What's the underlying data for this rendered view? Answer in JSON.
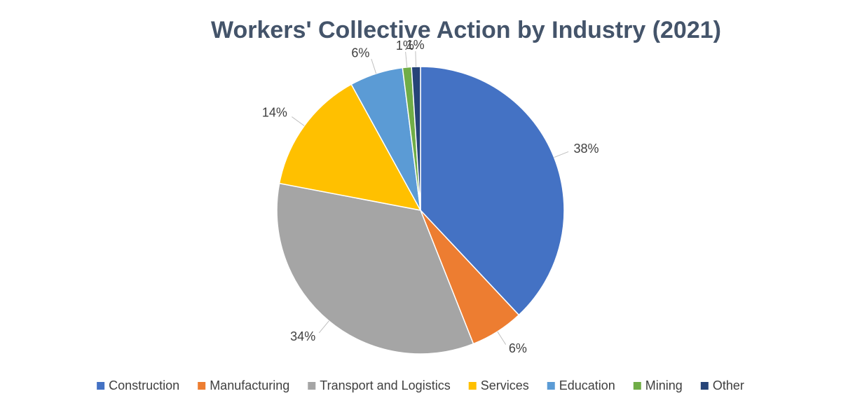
{
  "chart_data": {
    "type": "pie",
    "title": "Workers' Collective Action by Industry (2021)",
    "categories": [
      "Construction",
      "Manufacturing",
      "Transport and Logistics",
      "Services",
      "Education",
      "Mining",
      "Other"
    ],
    "values": [
      38,
      6,
      34,
      14,
      6,
      1,
      1
    ],
    "value_labels": [
      "38%",
      "6%",
      "34%",
      "14%",
      "6%",
      "1%",
      "1%"
    ],
    "colors": [
      "#4472c4",
      "#ed7d31",
      "#a5a5a5",
      "#ffc000",
      "#5b9bd5",
      "#70ad47",
      "#264478"
    ],
    "legend": "bottom"
  }
}
